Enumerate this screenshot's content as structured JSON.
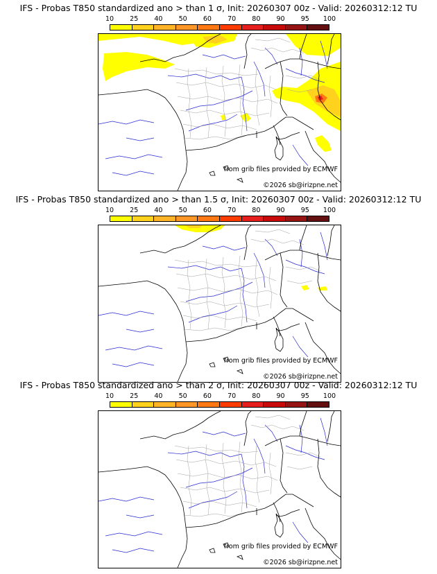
{
  "colorbar": {
    "labels": [
      "10",
      "25",
      "40",
      "50",
      "60",
      "70",
      "80",
      "90",
      "95",
      "100"
    ],
    "colors": [
      "#ffff00",
      "#ffd21e",
      "#ffb428",
      "#ff9628",
      "#ff7814",
      "#ff3c00",
      "#e61e1e",
      "#c80a0a",
      "#961414",
      "#641010"
    ]
  },
  "panels": [
    {
      "title": "IFS - Probas T850  standardized ano > than 1 σ, Init: 20260307 00z - Valid: 20260312:12 TU",
      "source": "from grib files provided by ECMWF",
      "copyright": "©2026 sb@irizpne.net"
    },
    {
      "title": "IFS - Probas T850  standardized ano > than 1.5 σ, Init: 20260307 00z - Valid: 20260312:12 TU",
      "source": "from grib files provided by ECMWF",
      "copyright": "©2026 sb@irizpne.net"
    },
    {
      "title": "IFS - Probas T850  standardized ano > than 2 σ, Init: 20260307 00z - Valid: 20260312:12 TU",
      "source": "from grib files provided by ECMWF",
      "copyright": "©2026 sb@irizpne.net"
    }
  ],
  "map_layers": {
    "coastline_color": "#000000",
    "border_color": "#000000",
    "region_color": "#a0a0a0",
    "river_color": "#2828d2"
  }
}
